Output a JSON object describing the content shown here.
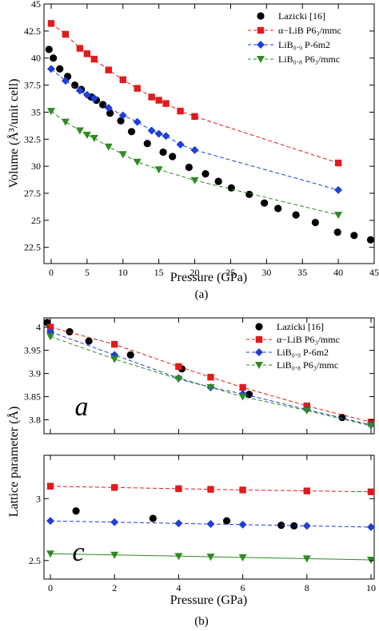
{
  "chart_data": [
    {
      "panel": "(a)",
      "type": "scatter",
      "xlabel": "Pressure (GPa)",
      "ylabel": "Volume (Å³/unit cell)",
      "xlim": [
        -1,
        45
      ],
      "ylim": [
        21,
        45
      ],
      "xticks": [
        "0",
        "5",
        "10",
        "15",
        "20",
        "25",
        "30",
        "35",
        "40",
        "45"
      ],
      "yticks": [
        "22.5",
        "25",
        "27.5",
        "30",
        "32.5",
        "35",
        "37.5",
        "40",
        "42.5",
        "45"
      ],
      "legend_position": "top-right",
      "series": [
        {
          "name": "Lazicki [16]",
          "color": "#000000",
          "marker": "circle",
          "line": false,
          "x": [
            -0.3,
            0.3,
            1.2,
            2.3,
            3.3,
            4.2,
            5.6,
            6.3,
            7.2,
            8.2,
            9.7,
            11.2,
            13.4,
            15.6,
            16.9,
            19.2,
            21.5,
            23.3,
            25.1,
            27.6,
            29.7,
            31.6,
            34.1,
            36.8,
            39.9,
            42.2,
            44.5
          ],
          "y": [
            40.8,
            40.0,
            39.0,
            38.3,
            37.5,
            37.1,
            36.4,
            36.1,
            35.7,
            34.9,
            34.2,
            33.2,
            32.1,
            31.3,
            30.9,
            29.9,
            29.3,
            28.6,
            28.0,
            27.4,
            26.6,
            26.1,
            25.5,
            24.8,
            23.9,
            23.6,
            23.2
          ]
        },
        {
          "name": "α−LiB P6₃/mmc",
          "color": "#e31a1c",
          "marker": "square",
          "line": true,
          "dash": true,
          "x": [
            0,
            2,
            4,
            5,
            6,
            8,
            10,
            12,
            14,
            15,
            16,
            18,
            20,
            40
          ],
          "y": [
            43.2,
            42.2,
            40.9,
            40.4,
            39.9,
            38.9,
            38.0,
            37.2,
            36.4,
            36.1,
            35.8,
            35.1,
            34.6,
            30.3
          ]
        },
        {
          "name": "LiB₀.₉ P-6m2",
          "color": "#1f3fd6",
          "marker": "diamond",
          "line": true,
          "dash": true,
          "x": [
            0,
            2,
            4,
            5,
            6,
            8,
            10,
            12,
            14,
            15,
            16,
            18,
            20,
            40
          ],
          "y": [
            39.0,
            37.9,
            37.0,
            36.6,
            36.3,
            35.4,
            34.7,
            34.1,
            33.3,
            33.0,
            32.8,
            32.0,
            31.5,
            27.8
          ]
        },
        {
          "name": "LiB₀.₈ P6₃/mmc",
          "color": "#2e8b23",
          "marker": "triangle",
          "line": true,
          "dash": true,
          "x": [
            0,
            2,
            4,
            5,
            6,
            8,
            10,
            12,
            15,
            20,
            40
          ],
          "y": [
            35.1,
            34.1,
            33.3,
            32.9,
            32.6,
            31.8,
            31.1,
            30.4,
            29.7,
            28.7,
            25.5
          ]
        }
      ]
    },
    {
      "panel": "(b) top",
      "type": "scatter",
      "ylabel": "Lattice parameter (Å)",
      "xlim": [
        -0.2,
        10.1
      ],
      "ylim": [
        3.77,
        4.02
      ],
      "xticks": [
        "0",
        "2",
        "4",
        "6",
        "8",
        "10"
      ],
      "yticks": [
        "3.8",
        "3.85",
        "3.9",
        "3.95",
        "4"
      ],
      "inset_label": "a",
      "legend_position": "top-right",
      "series": [
        {
          "name": "Lazicki [16]",
          "color": "#000000",
          "marker": "circle",
          "line": false,
          "x": [
            -0.1,
            0.6,
            1.2,
            2.5,
            4.1,
            6.2,
            9.1
          ],
          "y": [
            4.01,
            3.99,
            3.97,
            3.94,
            3.91,
            3.855,
            3.805
          ]
        },
        {
          "name": "α−LiB P6₃/mmc",
          "color": "#e31a1c",
          "marker": "square",
          "line": true,
          "dash": true,
          "x": [
            0,
            2,
            4,
            5,
            6,
            8,
            10
          ],
          "y": [
            4.0,
            3.963,
            3.915,
            3.892,
            3.87,
            3.83,
            3.795
          ]
        },
        {
          "name": "LiB₀.₉ P-6m2",
          "color": "#1f3fd6",
          "marker": "diamond",
          "line": true,
          "dash": true,
          "x": [
            0,
            2,
            4,
            5,
            6,
            8,
            10
          ],
          "y": [
            3.99,
            3.94,
            3.89,
            3.87,
            3.856,
            3.822,
            3.789
          ]
        },
        {
          "name": "LiB₀.₈ P6₃/mmc",
          "color": "#2e8b23",
          "marker": "triangle",
          "line": true,
          "dash": true,
          "x": [
            0,
            2,
            4,
            5,
            6,
            8,
            10
          ],
          "y": [
            3.98,
            3.931,
            3.888,
            3.87,
            3.85,
            3.82,
            3.787
          ]
        }
      ]
    },
    {
      "panel": "(b) bottom",
      "type": "scatter",
      "xlabel": "Pressure (GPa)",
      "xlim": [
        -0.2,
        10.1
      ],
      "ylim": [
        2.35,
        3.35
      ],
      "xticks": [
        "0",
        "2",
        "4",
        "6",
        "8",
        "10"
      ],
      "yticks": [
        "2.5",
        "3"
      ],
      "inset_label": "c",
      "series": [
        {
          "name": "Lazicki [16]",
          "color": "#000000",
          "marker": "circle",
          "line": false,
          "x": [
            0.8,
            3.2,
            5.5,
            7.2,
            7.6
          ],
          "y": [
            2.9,
            2.84,
            2.82,
            2.785,
            2.78
          ]
        },
        {
          "name": "α−LiB P6₃/mmc",
          "color": "#e31a1c",
          "marker": "square",
          "line": true,
          "dash": true,
          "x": [
            0,
            2,
            4,
            5,
            6,
            8,
            10
          ],
          "y": [
            3.1,
            3.09,
            3.08,
            3.075,
            3.07,
            3.062,
            3.055
          ]
        },
        {
          "name": "LiB₀.₉ P-6m2",
          "color": "#1f3fd6",
          "marker": "diamond",
          "line": true,
          "dash": true,
          "x": [
            0,
            2,
            4,
            5,
            6,
            8,
            10
          ],
          "y": [
            2.82,
            2.81,
            2.8,
            2.795,
            2.79,
            2.78,
            2.77
          ]
        },
        {
          "name": "LiB₀.₈ P6₃/mmc",
          "color": "#2e8b23",
          "marker": "triangle",
          "line": true,
          "dash": false,
          "x": [
            0,
            2,
            4,
            5,
            6,
            8,
            10
          ],
          "y": [
            2.555,
            2.545,
            2.535,
            2.53,
            2.525,
            2.515,
            2.505
          ]
        }
      ]
    }
  ],
  "captions": {
    "a": "(a)",
    "b": "(b)"
  }
}
